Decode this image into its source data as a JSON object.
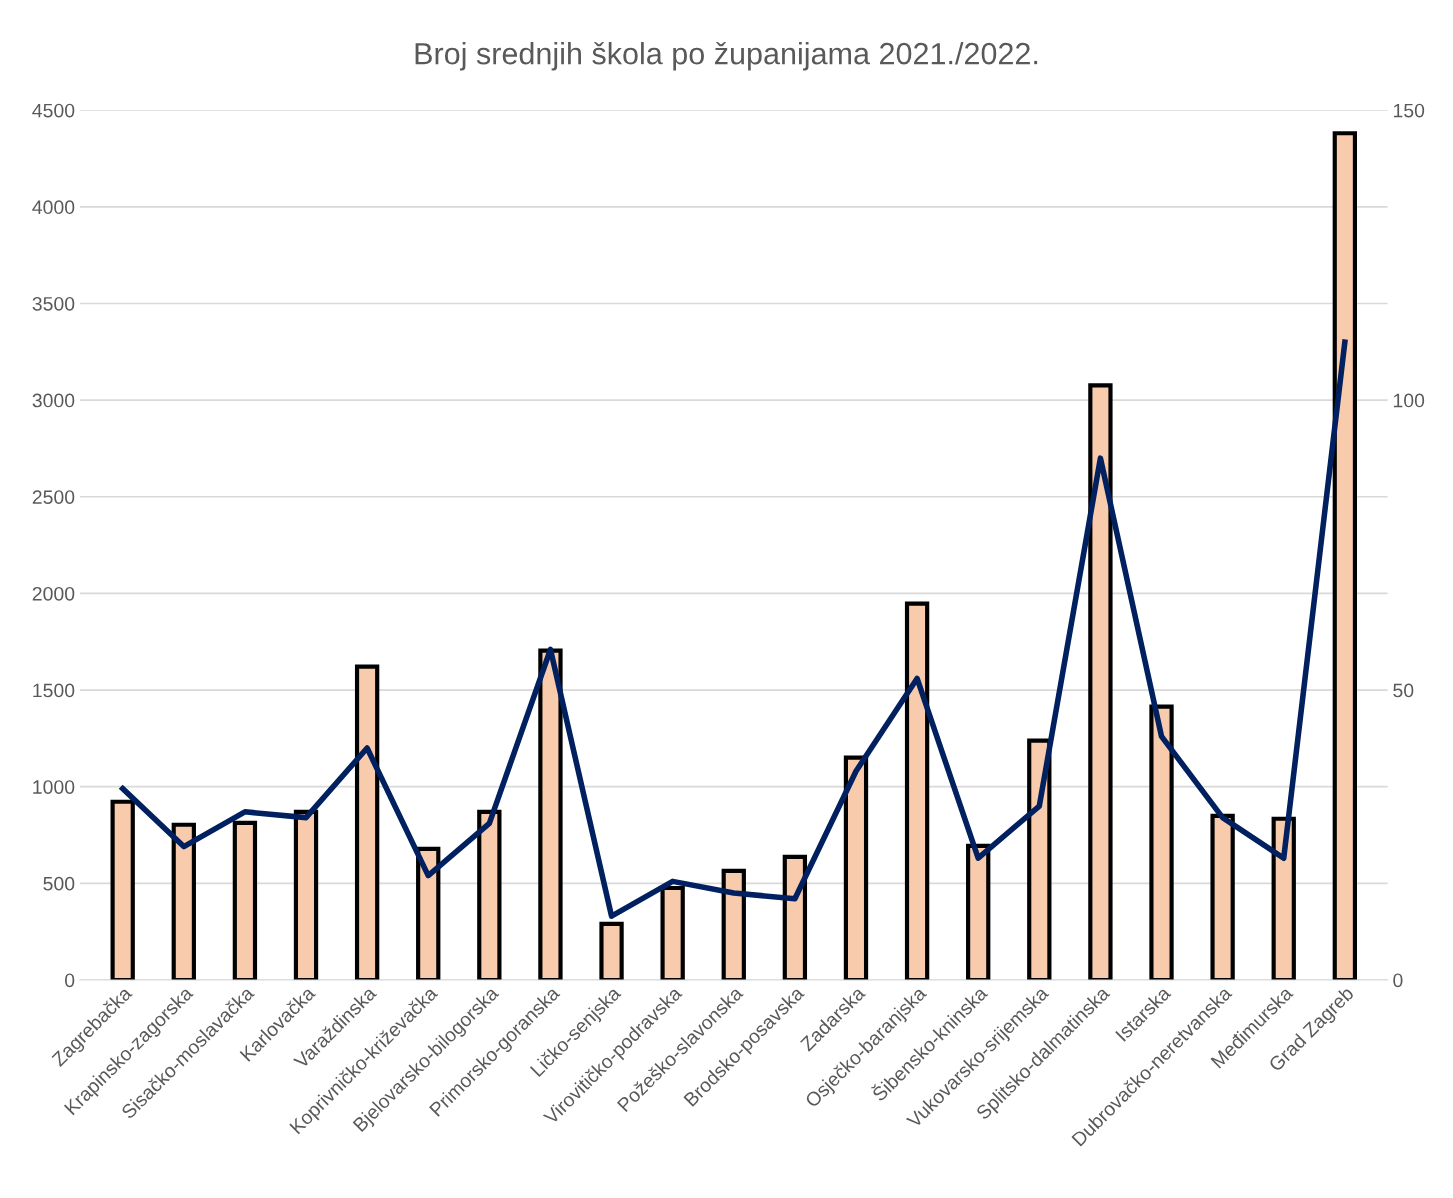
{
  "chart_data": {
    "type": "bar",
    "title": "Broj srednjih škola po županijama 2021./2022.",
    "categories": [
      "Zagrebačka",
      "Krapinsko-zagorska",
      "Sisačko-moslavačka",
      "Karlovačka",
      "Varaždinska",
      "Koprivničko-križevačka",
      "Bjelovarsko-bilogorska",
      "Primorsko-goranska",
      "Ličko-senjska",
      "Virovitičko-podravska",
      "Požeško-slavonska",
      "Brodsko-posavska",
      "Zadarska",
      "Osječko-baranjska",
      "Šibensko-kninska",
      "Vukovarsko-srijemska",
      "Splitsko-dalmatinska",
      "Istarska",
      "Dubrovačko-neretvanska",
      "Međimurska",
      "Grad Zagreb"
    ],
    "series": [
      {
        "color": "#f8cbad",
        "values": [
          922,
          803,
          813,
          870,
          1621,
          678,
          870,
          1704,
          290,
          476,
          564,
          637,
          1150,
          1947,
          694,
          1238,
          3076,
          1414,
          849,
          834,
          4381
        ]
      },
      {
        "type": "line",
        "axis": "y2",
        "color": "#002060",
        "values": [
          33,
          23,
          29,
          28,
          40,
          18,
          27,
          57,
          11,
          17,
          15,
          14,
          36,
          52,
          21,
          30,
          90,
          42,
          28,
          21,
          110
        ]
      }
    ],
    "ylim": [
      0,
      4500
    ],
    "yticks": [
      0,
      500,
      1000,
      1500,
      2000,
      2500,
      3000,
      3500,
      4000,
      4500
    ],
    "y2lim": [
      0,
      150
    ],
    "y2ticks": [
      0,
      50,
      100,
      150
    ],
    "grid": "y",
    "legend": false,
    "marker": "none",
    "line_style": "solid"
  }
}
